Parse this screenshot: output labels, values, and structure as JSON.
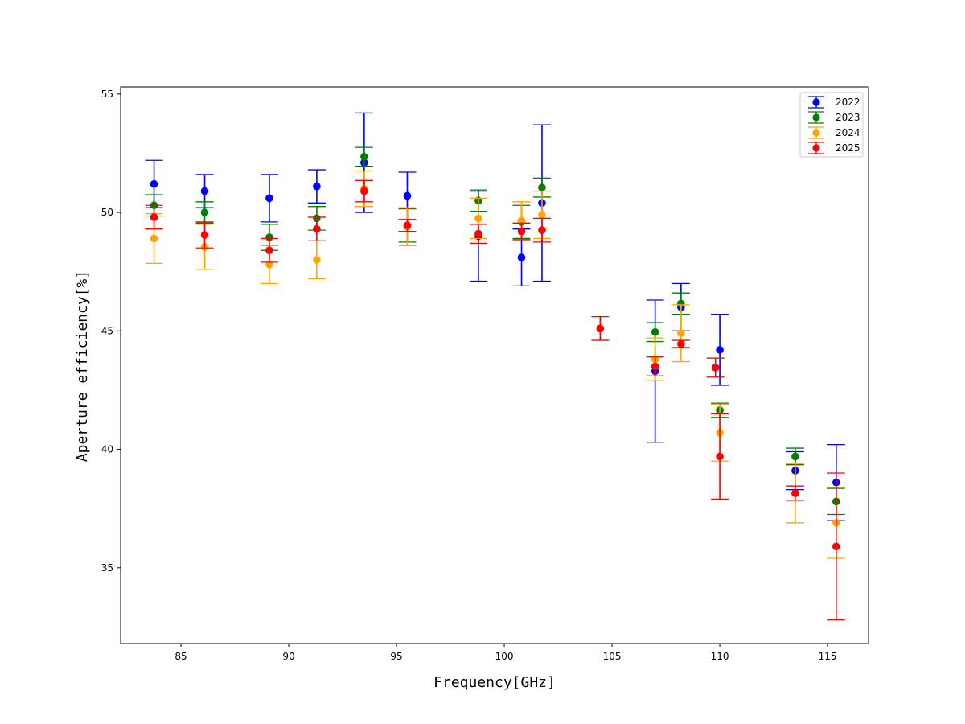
{
  "chart_data": {
    "type": "scatter",
    "title": "",
    "xlabel": "Frequency[GHz]",
    "ylabel": "Aperture efficiency[%]",
    "xlim": [
      82.2,
      116.9
    ],
    "ylim": [
      31.8,
      55.3
    ],
    "xticks": [
      85,
      90,
      95,
      100,
      105,
      110,
      115
    ],
    "yticks": [
      35,
      40,
      45,
      50,
      55
    ],
    "grid": false,
    "legend_position": "top-right",
    "series": [
      {
        "name": "2022",
        "color": "#0000ff",
        "points": [
          {
            "x": 83.75,
            "y": 51.2,
            "err": 1.0
          },
          {
            "x": 86.1,
            "y": 50.9,
            "err": 0.7
          },
          {
            "x": 89.1,
            "y": 50.6,
            "err": 1.0
          },
          {
            "x": 91.3,
            "y": 51.1,
            "err": 0.7
          },
          {
            "x": 93.5,
            "y": 52.1,
            "err": 2.1
          },
          {
            "x": 95.5,
            "y": 50.7,
            "err": 1.0
          },
          {
            "x": 98.8,
            "y": 49.0,
            "err": 1.9
          },
          {
            "x": 100.8,
            "y": 48.1,
            "err": 1.2
          },
          {
            "x": 101.75,
            "y": 50.4,
            "err": 3.3
          },
          {
            "x": 107.0,
            "y": 43.3,
            "err": 3.0
          },
          {
            "x": 108.2,
            "y": 46.0,
            "err": 1.0
          },
          {
            "x": 110.0,
            "y": 44.2,
            "err": 1.5
          },
          {
            "x": 113.5,
            "y": 39.1,
            "err": 0.8
          },
          {
            "x": 115.4,
            "y": 38.6,
            "err": 1.6
          }
        ]
      },
      {
        "name": "2023",
        "color": "#008000",
        "points": [
          {
            "x": 83.75,
            "y": 50.3,
            "err": 0.45
          },
          {
            "x": 86.1,
            "y": 50.0,
            "err": 0.45
          },
          {
            "x": 89.1,
            "y": 48.95,
            "err": 0.55
          },
          {
            "x": 91.3,
            "y": 49.75,
            "err": 0.5
          },
          {
            "x": 93.5,
            "y": 52.35,
            "err": 0.4
          },
          {
            "x": 95.5,
            "y": 49.45,
            "err": 0.7
          },
          {
            "x": 98.8,
            "y": 50.5,
            "err": 0.45
          },
          {
            "x": 100.8,
            "y": 49.6,
            "err": 0.7
          },
          {
            "x": 101.75,
            "y": 51.05,
            "err": 0.4
          },
          {
            "x": 107.0,
            "y": 44.95,
            "err": 0.4
          },
          {
            "x": 108.2,
            "y": 46.15,
            "err": 0.45
          },
          {
            "x": 110.0,
            "y": 41.65,
            "err": 0.3
          },
          {
            "x": 113.5,
            "y": 39.7,
            "err": 0.35
          },
          {
            "x": 115.4,
            "y": 37.8,
            "err": 0.55
          }
        ]
      },
      {
        "name": "2024",
        "color": "#ffa500",
        "points": [
          {
            "x": 83.75,
            "y": 48.9,
            "err": 1.05
          },
          {
            "x": 86.1,
            "y": 48.55,
            "err": 0.95
          },
          {
            "x": 89.1,
            "y": 47.8,
            "err": 0.8
          },
          {
            "x": 91.3,
            "y": 48.0,
            "err": 0.8
          },
          {
            "x": 93.5,
            "y": 51.0,
            "err": 0.75
          },
          {
            "x": 95.5,
            "y": 49.4,
            "err": 0.8
          },
          {
            "x": 98.8,
            "y": 49.75,
            "err": 0.85
          },
          {
            "x": 100.8,
            "y": 49.65,
            "err": 0.8
          },
          {
            "x": 101.75,
            "y": 49.9,
            "err": 1.0
          },
          {
            "x": 107.0,
            "y": 43.8,
            "err": 0.9
          },
          {
            "x": 108.2,
            "y": 44.9,
            "err": 1.2
          },
          {
            "x": 110.0,
            "y": 40.7,
            "err": 1.2
          },
          {
            "x": 113.5,
            "y": 38.15,
            "err": 1.25
          },
          {
            "x": 115.4,
            "y": 36.9,
            "err": 1.5
          }
        ]
      },
      {
        "name": "2025",
        "color": "#ff0000",
        "points": [
          {
            "x": 83.75,
            "y": 49.8,
            "err": 0.5
          },
          {
            "x": 86.1,
            "y": 49.05,
            "err": 0.55
          },
          {
            "x": 89.1,
            "y": 48.4,
            "err": 0.5
          },
          {
            "x": 91.3,
            "y": 49.3,
            "err": 0.5
          },
          {
            "x": 93.5,
            "y": 50.9,
            "err": 0.45
          },
          {
            "x": 95.5,
            "y": 49.45,
            "err": 0.25
          },
          {
            "x": 98.8,
            "y": 49.1,
            "err": 0.4
          },
          {
            "x": 100.8,
            "y": 49.2,
            "err": 0.35
          },
          {
            "x": 101.75,
            "y": 49.25,
            "err": 0.5
          },
          {
            "x": 104.45,
            "y": 45.1,
            "err": 0.5
          },
          {
            "x": 107.0,
            "y": 43.5,
            "err": 0.4
          },
          {
            "x": 108.2,
            "y": 44.45,
            "err": 0.15
          },
          {
            "x": 109.8,
            "y": 43.45,
            "err": 0.4
          },
          {
            "x": 110.0,
            "y": 39.7,
            "err": 1.8
          },
          {
            "x": 113.5,
            "y": 38.15,
            "err": 0.3
          },
          {
            "x": 115.4,
            "y": 35.9,
            "err": 3.1
          }
        ]
      }
    ]
  }
}
